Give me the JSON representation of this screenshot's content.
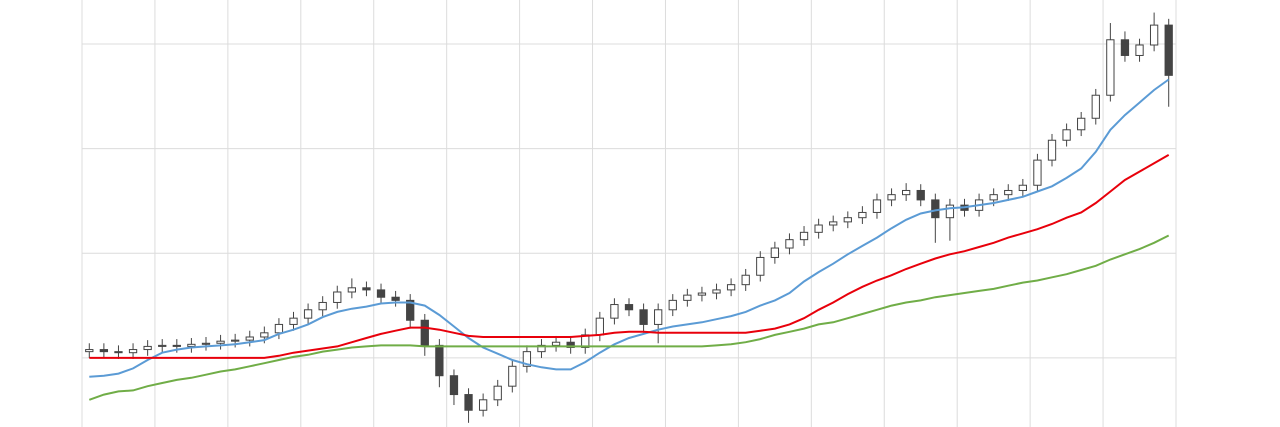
{
  "chart_data": {
    "type": "candlestick",
    "x": [
      1,
      3,
      5,
      7,
      9,
      11,
      13,
      15,
      17,
      19,
      21,
      23,
      25,
      27,
      29,
      31,
      33,
      35,
      37,
      39,
      41,
      43,
      45,
      47,
      49,
      51,
      53,
      55,
      57,
      59,
      61,
      63,
      65,
      67,
      69,
      71,
      73,
      75,
      77,
      79,
      81,
      83,
      85,
      87,
      89,
      91,
      93,
      95,
      97,
      99,
      101,
      103,
      105,
      107,
      109,
      111,
      113,
      115,
      117,
      119,
      121,
      123,
      125,
      127,
      129,
      131,
      133,
      135,
      137,
      139,
      141,
      143,
      145,
      147,
      149
    ],
    "open": [
      1.06,
      1.08,
      1.06,
      1.05,
      1.08,
      1.11,
      1.12,
      1.11,
      1.13,
      1.14,
      1.16,
      1.17,
      1.2,
      1.24,
      1.32,
      1.38,
      1.46,
      1.53,
      1.63,
      1.67,
      1.65,
      1.58,
      1.55,
      1.36,
      1.12,
      0.83,
      0.65,
      0.5,
      0.6,
      0.73,
      0.92,
      1.06,
      1.12,
      1.15,
      1.1,
      1.22,
      1.38,
      1.51,
      1.46,
      1.32,
      1.46,
      1.55,
      1.6,
      1.62,
      1.65,
      1.7,
      1.79,
      1.96,
      2.05,
      2.13,
      2.2,
      2.27,
      2.3,
      2.34,
      2.39,
      2.51,
      2.56,
      2.6,
      2.51,
      2.34,
      2.46,
      2.41,
      2.51,
      2.56,
      2.6,
      2.65,
      2.89,
      3.08,
      3.18,
      3.29,
      3.51,
      4.04,
      3.89,
      3.99,
      4.18
    ],
    "high": [
      1.14,
      1.14,
      1.12,
      1.14,
      1.17,
      1.18,
      1.18,
      1.19,
      1.2,
      1.22,
      1.23,
      1.26,
      1.3,
      1.38,
      1.44,
      1.52,
      1.59,
      1.69,
      1.76,
      1.73,
      1.71,
      1.64,
      1.61,
      1.42,
      1.18,
      0.89,
      0.71,
      0.66,
      0.79,
      0.98,
      1.12,
      1.18,
      1.21,
      1.21,
      1.28,
      1.44,
      1.57,
      1.57,
      1.52,
      1.52,
      1.61,
      1.66,
      1.68,
      1.71,
      1.76,
      1.85,
      2.02,
      2.11,
      2.19,
      2.26,
      2.33,
      2.36,
      2.4,
      2.45,
      2.57,
      2.62,
      2.67,
      2.66,
      2.57,
      2.52,
      2.52,
      2.57,
      2.62,
      2.66,
      2.71,
      2.95,
      3.14,
      3.24,
      3.35,
      3.57,
      4.2,
      4.12,
      4.05,
      4.3,
      4.24
    ],
    "low": [
      1.0,
      1.0,
      0.99,
      0.99,
      1.02,
      1.05,
      1.05,
      1.05,
      1.07,
      1.08,
      1.1,
      1.11,
      1.14,
      1.18,
      1.26,
      1.32,
      1.4,
      1.47,
      1.57,
      1.59,
      1.52,
      1.49,
      1.28,
      1.02,
      0.72,
      0.55,
      0.38,
      0.44,
      0.54,
      0.67,
      0.86,
      1.0,
      1.06,
      1.04,
      1.04,
      1.16,
      1.32,
      1.4,
      1.24,
      1.14,
      1.4,
      1.49,
      1.54,
      1.56,
      1.59,
      1.64,
      1.73,
      1.9,
      1.99,
      2.07,
      2.14,
      2.21,
      2.24,
      2.28,
      2.33,
      2.45,
      2.5,
      2.45,
      2.1,
      2.12,
      2.35,
      2.35,
      2.45,
      2.5,
      2.54,
      2.59,
      2.83,
      3.02,
      3.12,
      3.23,
      3.45,
      3.83,
      3.83,
      3.93,
      3.4
    ],
    "close": [
      1.08,
      1.06,
      1.05,
      1.08,
      1.11,
      1.12,
      1.11,
      1.13,
      1.14,
      1.16,
      1.17,
      1.2,
      1.24,
      1.32,
      1.38,
      1.46,
      1.53,
      1.63,
      1.67,
      1.65,
      1.58,
      1.55,
      1.36,
      1.12,
      0.83,
      0.65,
      0.5,
      0.6,
      0.73,
      0.92,
      1.06,
      1.12,
      1.15,
      1.1,
      1.22,
      1.38,
      1.51,
      1.46,
      1.32,
      1.46,
      1.55,
      1.6,
      1.62,
      1.65,
      1.7,
      1.79,
      1.96,
      2.05,
      2.13,
      2.2,
      2.27,
      2.3,
      2.34,
      2.39,
      2.51,
      2.56,
      2.6,
      2.51,
      2.34,
      2.46,
      2.41,
      2.51,
      2.56,
      2.6,
      2.65,
      2.89,
      3.08,
      3.18,
      3.29,
      3.51,
      4.04,
      3.89,
      3.99,
      4.18,
      3.7
    ],
    "up_color": "#ffffff",
    "down_color": "#444444",
    "wick_color": "#444444",
    "series": [
      {
        "color": "#5b9bd5",
        "values": [
          0.82,
          0.83,
          0.85,
          0.9,
          0.98,
          1.05,
          1.08,
          1.1,
          1.11,
          1.12,
          1.13,
          1.15,
          1.17,
          1.23,
          1.27,
          1.32,
          1.39,
          1.44,
          1.47,
          1.49,
          1.52,
          1.53,
          1.53,
          1.5,
          1.41,
          1.3,
          1.19,
          1.1,
          1.04,
          0.98,
          0.94,
          0.91,
          0.89,
          0.89,
          0.96,
          1.05,
          1.13,
          1.19,
          1.23,
          1.27,
          1.3,
          1.32,
          1.34,
          1.37,
          1.4,
          1.44,
          1.5,
          1.55,
          1.62,
          1.73,
          1.82,
          1.9,
          1.99,
          2.07,
          2.15,
          2.24,
          2.32,
          2.38,
          2.41,
          2.43,
          2.44,
          2.46,
          2.48,
          2.51,
          2.54,
          2.59,
          2.64,
          2.72,
          2.81,
          2.97,
          3.18,
          3.32,
          3.44,
          3.56,
          3.66
        ]
      },
      {
        "color": "#e8000b",
        "values": [
          1.0,
          1.0,
          1.0,
          1.0,
          1.0,
          1.0,
          1.0,
          1.0,
          1.0,
          1.0,
          1.0,
          1.0,
          1.0,
          1.02,
          1.05,
          1.07,
          1.09,
          1.11,
          1.15,
          1.19,
          1.23,
          1.26,
          1.29,
          1.29,
          1.27,
          1.24,
          1.21,
          1.2,
          1.2,
          1.2,
          1.2,
          1.2,
          1.2,
          1.2,
          1.21,
          1.22,
          1.24,
          1.25,
          1.25,
          1.24,
          1.24,
          1.24,
          1.24,
          1.24,
          1.24,
          1.24,
          1.26,
          1.28,
          1.32,
          1.38,
          1.46,
          1.53,
          1.61,
          1.68,
          1.74,
          1.79,
          1.85,
          1.9,
          1.95,
          1.99,
          2.02,
          2.06,
          2.1,
          2.15,
          2.19,
          2.23,
          2.28,
          2.34,
          2.39,
          2.48,
          2.59,
          2.7,
          2.78,
          2.86,
          2.94
        ]
      },
      {
        "color": "#70ad47",
        "values": [
          0.6,
          0.65,
          0.68,
          0.69,
          0.73,
          0.76,
          0.79,
          0.81,
          0.84,
          0.87,
          0.89,
          0.92,
          0.95,
          0.98,
          1.01,
          1.03,
          1.06,
          1.08,
          1.1,
          1.11,
          1.12,
          1.12,
          1.12,
          1.11,
          1.11,
          1.11,
          1.11,
          1.11,
          1.11,
          1.11,
          1.11,
          1.11,
          1.11,
          1.11,
          1.11,
          1.11,
          1.11,
          1.11,
          1.11,
          1.11,
          1.11,
          1.11,
          1.11,
          1.12,
          1.13,
          1.15,
          1.18,
          1.22,
          1.25,
          1.28,
          1.32,
          1.34,
          1.38,
          1.42,
          1.46,
          1.5,
          1.53,
          1.55,
          1.58,
          1.6,
          1.62,
          1.64,
          1.66,
          1.69,
          1.72,
          1.74,
          1.77,
          1.8,
          1.84,
          1.88,
          1.94,
          1.99,
          2.04,
          2.1,
          2.17
        ]
      }
    ],
    "xlim": [
      0,
      150
    ],
    "xticks": [
      0,
      10,
      20,
      30,
      40,
      50,
      60,
      70,
      80,
      90,
      100,
      110,
      120,
      130,
      140,
      150
    ],
    "ylim": [
      0.34,
      4.42
    ],
    "yticks": [
      1,
      2,
      3,
      4
    ],
    "grid": true
  }
}
